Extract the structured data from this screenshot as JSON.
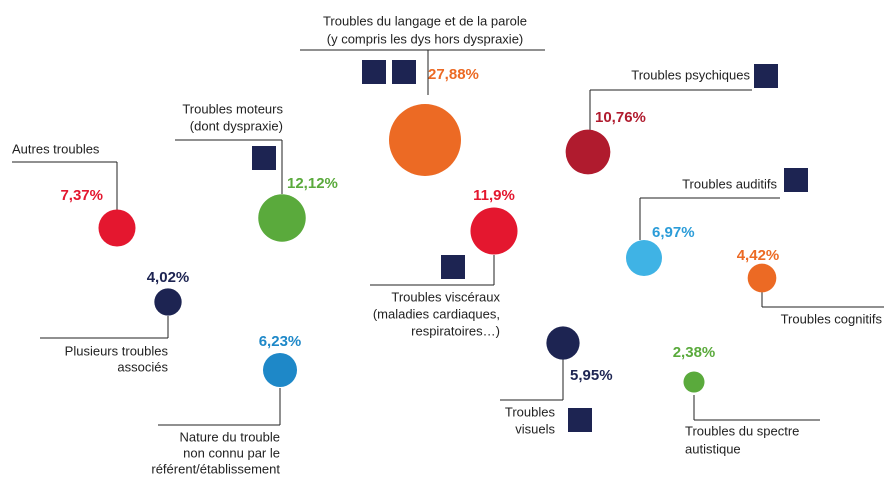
{
  "chart_data": {
    "type": "bubble",
    "categories": [
      [
        "Troubles du langage et de la parole",
        "(y compris les dys hors dyspraxie)"
      ],
      [
        "Troubles psychiques"
      ],
      [
        "Troubles moteurs",
        "(dont dyspraxie)"
      ],
      [
        "Autres troubles"
      ],
      [
        "Troubles viscéraux",
        "(maladies cardiaques,",
        "respiratoires…)"
      ],
      [
        "Troubles auditifs"
      ],
      [
        "Troubles cognitifs"
      ],
      [
        "Plusieurs troubles",
        "associés"
      ],
      [
        "Nature du trouble",
        "non connu par le",
        "référent/établissement"
      ],
      [
        "Troubles",
        "visuels"
      ],
      [
        "Troubles du spectre",
        "autistique"
      ]
    ],
    "values": [
      27.88,
      10.76,
      12.12,
      7.37,
      11.9,
      6.97,
      4.42,
      4.02,
      6.23,
      5.95,
      2.38
    ],
    "value_labels": [
      "27,88%",
      "10,76%",
      "12,12%",
      "7,37%",
      "11,9%",
      "6,97%",
      "4,42%",
      "4,02%",
      "6,23%",
      "5,95%",
      "2,38%"
    ],
    "colors": [
      "#ec6a24",
      "#b01b2e",
      "#5aaa3c",
      "#e4172f",
      "#e4172f",
      "#3fb3e5",
      "#ec6a24",
      "#1d2452",
      "#1e88c8",
      "#1d2452",
      "#5aaa3c"
    ]
  }
}
